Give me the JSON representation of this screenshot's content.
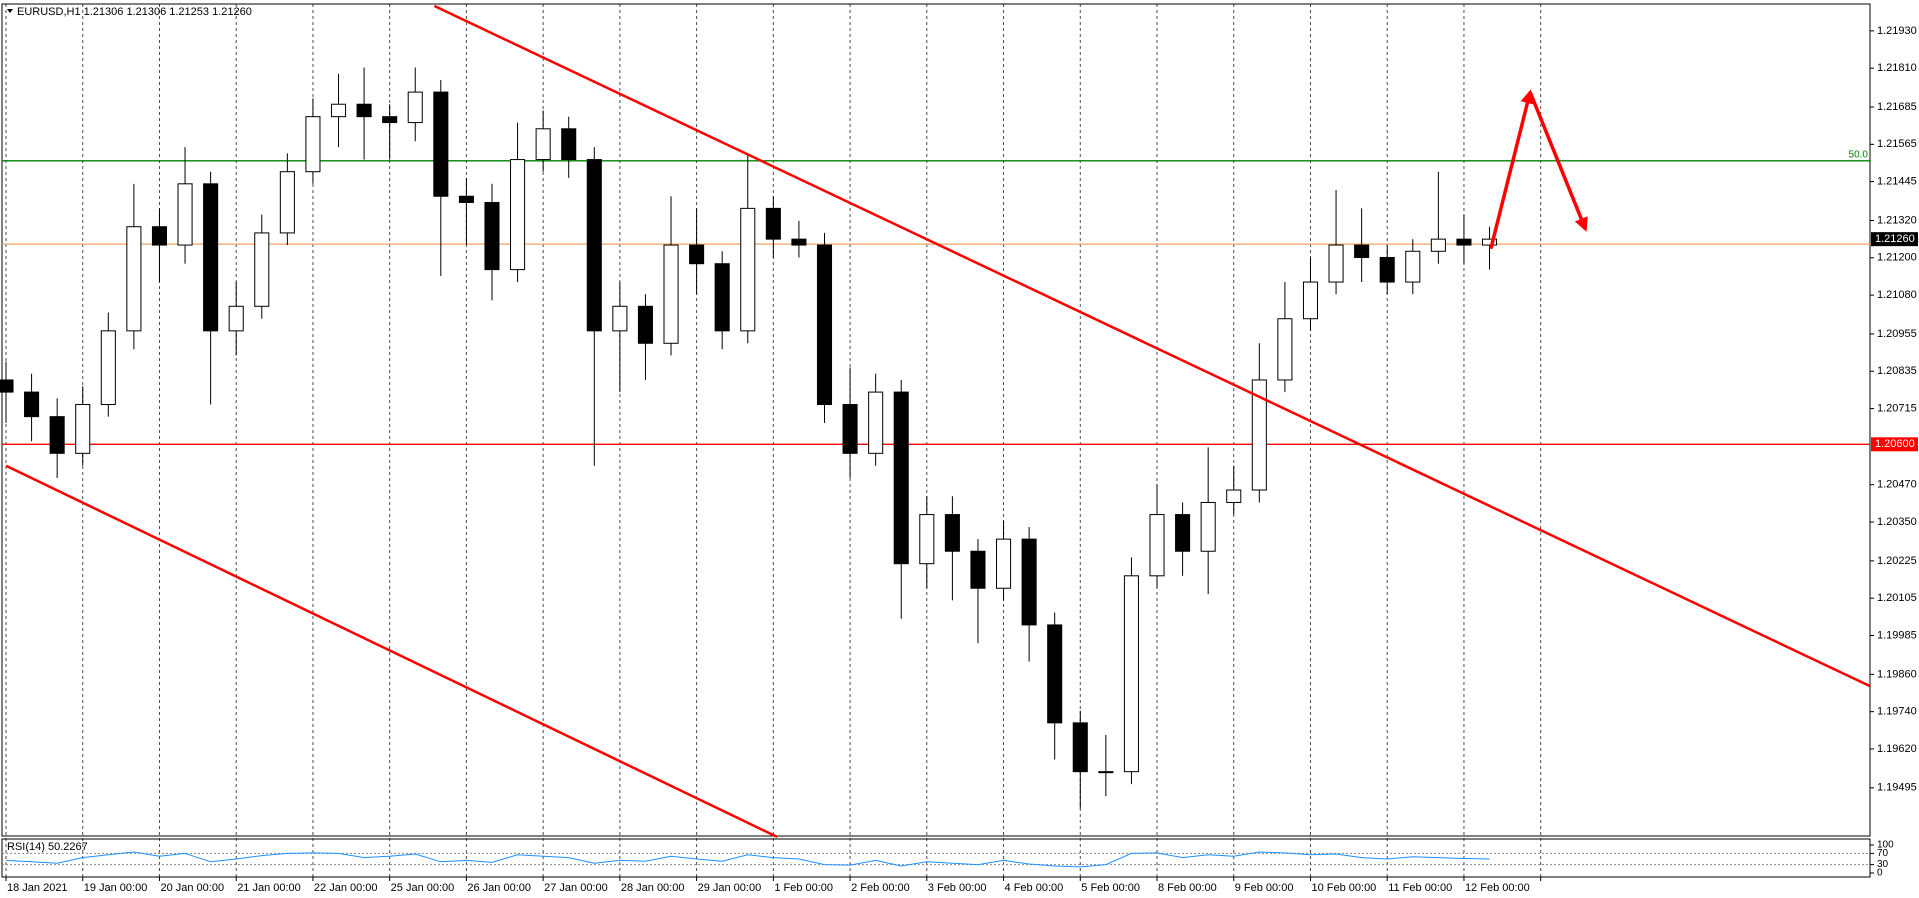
{
  "chart_data": {
    "type": "candlestick",
    "title": "EURUSD,H1  1.21306 1.21306 1.21253 1.21260",
    "x": [
      0,
      8,
      16,
      24,
      32,
      40,
      48,
      56,
      64,
      72,
      80,
      88,
      96,
      104,
      112,
      120,
      128,
      136,
      144,
      152,
      160,
      168,
      176,
      184,
      192,
      200,
      208,
      216,
      224,
      232,
      240,
      248,
      256,
      264,
      272,
      280,
      288,
      296,
      304,
      312,
      320,
      328,
      336,
      344,
      352,
      360,
      368,
      376,
      384,
      392,
      400,
      408,
      416,
      424,
      432,
      440,
      448,
      456,
      464
    ],
    "open": [
      1.20807,
      1.20768,
      1.20689,
      1.20571,
      1.20728,
      1.20965,
      1.213,
      1.21241,
      1.21438,
      1.20965,
      1.21044,
      1.2128,
      1.21477,
      1.21654,
      1.21694,
      1.21654,
      1.21635,
      1.21733,
      1.21398,
      1.21378,
      1.21162,
      1.21516,
      1.21615,
      1.21516,
      1.20965,
      1.21044,
      1.20925,
      1.21241,
      1.21181,
      1.20965,
      1.21359,
      1.2126,
      1.21241,
      1.20728,
      1.20571,
      1.20768,
      1.20216,
      1.20374,
      1.20256,
      1.20137,
      1.20295,
      1.20019,
      1.19704,
      1.19547,
      1.19547,
      1.20177,
      1.20374,
      1.20256,
      1.20413,
      1.20453,
      1.20807,
      1.21004,
      1.21122,
      1.21241,
      1.21201,
      1.21122,
      1.21221,
      1.2126,
      1.21241
    ],
    "high": [
      1.20866,
      1.20827,
      1.20748,
      1.20787,
      1.21024,
      1.21438,
      1.21359,
      1.21556,
      1.21477,
      1.21122,
      1.21339,
      1.21536,
      1.21713,
      1.21792,
      1.21812,
      1.21694,
      1.21812,
      1.21772,
      1.21457,
      1.21438,
      1.21635,
      1.21674,
      1.21654,
      1.21556,
      1.21122,
      1.21083,
      1.21398,
      1.21359,
      1.21221,
      1.21536,
      1.21398,
      1.21319,
      1.2128,
      1.20847,
      1.20827,
      1.20807,
      1.20433,
      1.20433,
      1.20295,
      1.20354,
      1.20334,
      1.20059,
      1.19743,
      1.19665,
      1.20236,
      1.20472,
      1.20413,
      1.2059,
      1.20531,
      1.20925,
      1.21122,
      1.21201,
      1.21418,
      1.21359,
      1.21241,
      1.2126,
      1.21477,
      1.21339,
      1.213
    ],
    "low": [
      1.20669,
      1.2061,
      1.20492,
      1.20531,
      1.20689,
      1.20906,
      1.21122,
      1.21181,
      1.20728,
      1.20886,
      1.21004,
      1.21241,
      1.21438,
      1.21556,
      1.21516,
      1.21516,
      1.21575,
      1.21142,
      1.21241,
      1.21063,
      1.21122,
      1.21477,
      1.21457,
      1.20531,
      1.20768,
      1.20807,
      1.20886,
      1.21083,
      1.20906,
      1.20925,
      1.21201,
      1.21201,
      1.20669,
      1.20492,
      1.20531,
      1.20039,
      1.20137,
      1.20098,
      1.1996,
      1.20098,
      1.19901,
      1.19586,
      1.19429,
      1.19468,
      1.19507,
      1.20137,
      1.20177,
      1.20118,
      1.20374,
      1.20413,
      1.20768,
      1.20965,
      1.21083,
      1.21122,
      1.21083,
      1.21083,
      1.21181,
      1.21181,
      1.21162
    ],
    "close": [
      1.20768,
      1.20689,
      1.20571,
      1.20728,
      1.20965,
      1.213,
      1.21241,
      1.21438,
      1.20965,
      1.21044,
      1.2128,
      1.21477,
      1.21654,
      1.21694,
      1.21654,
      1.21635,
      1.21733,
      1.21398,
      1.21378,
      1.21162,
      1.21516,
      1.21615,
      1.21516,
      1.20965,
      1.21044,
      1.20925,
      1.21241,
      1.21181,
      1.20965,
      1.21359,
      1.2126,
      1.21241,
      1.20728,
      1.20571,
      1.20768,
      1.20216,
      1.20374,
      1.20256,
      1.20137,
      1.20295,
      1.20019,
      1.19704,
      1.19547,
      1.19547,
      1.20177,
      1.20374,
      1.20256,
      1.20413,
      1.20453,
      1.20807,
      1.21004,
      1.21122,
      1.21241,
      1.21201,
      1.21122,
      1.21221,
      1.2126,
      1.21241,
      1.2126
    ],
    "candle_colors": {
      "up": "#ffffff",
      "down": "#000000",
      "outline": "#000000"
    },
    "xlim": [
      0,
      583
    ],
    "ylim": [
      1.1934,
      1.2201
    ],
    "xticks": [
      {
        "value": 0,
        "label": "18 Jan 2021"
      },
      {
        "value": 24,
        "label": "19 Jan 00:00"
      },
      {
        "value": 48,
        "label": "20 Jan 00:00"
      },
      {
        "value": 72,
        "label": "21 Jan 00:00"
      },
      {
        "value": 96,
        "label": "22 Jan 00:00"
      },
      {
        "value": 120,
        "label": "25 Jan 00:00"
      },
      {
        "value": 144,
        "label": "26 Jan 00:00"
      },
      {
        "value": 168,
        "label": "27 Jan 00:00"
      },
      {
        "value": 192,
        "label": "28 Jan 00:00"
      },
      {
        "value": 216,
        "label": "29 Jan 00:00"
      },
      {
        "value": 240,
        "label": "1 Feb 00:00"
      },
      {
        "value": 264,
        "label": "2 Feb 00:00"
      },
      {
        "value": 288,
        "label": "3 Feb 00:00"
      },
      {
        "value": 312,
        "label": "4 Feb 00:00"
      },
      {
        "value": 336,
        "label": "5 Feb 00:00"
      },
      {
        "value": 360,
        "label": "8 Feb 00:00"
      },
      {
        "value": 384,
        "label": "9 Feb 00:00"
      },
      {
        "value": 408,
        "label": "10 Feb 00:00"
      },
      {
        "value": 432,
        "label": "11 Feb 00:00"
      },
      {
        "value": 456,
        "label": "12 Feb 00:00"
      },
      {
        "value": 480,
        "label": null
      }
    ],
    "yticks": [
      {
        "value": 1.2193,
        "label": "1.21930"
      },
      {
        "value": 1.2181,
        "label": "1.21810"
      },
      {
        "value": 1.21685,
        "label": "1.21685"
      },
      {
        "value": 1.21565,
        "label": "1.21565"
      },
      {
        "value": 1.21445,
        "label": "1.21445"
      },
      {
        "value": 1.2132,
        "label": "1.21320"
      },
      {
        "value": 1.212,
        "label": "1.21200"
      },
      {
        "value": 1.2108,
        "label": "1.21080"
      },
      {
        "value": 1.20955,
        "label": "1.20955"
      },
      {
        "value": 1.20835,
        "label": "1.20835"
      },
      {
        "value": 1.20715,
        "label": "1.20715"
      },
      {
        "value": 1.2047,
        "label": "1.20470"
      },
      {
        "value": 1.2035,
        "label": "1.20350"
      },
      {
        "value": 1.20225,
        "label": "1.20225"
      },
      {
        "value": 1.20105,
        "label": "1.20105"
      },
      {
        "value": 1.19985,
        "label": "1.19985"
      },
      {
        "value": 1.1986,
        "label": "1.19860"
      },
      {
        "value": 1.1974,
        "label": "1.19740"
      },
      {
        "value": 1.1962,
        "label": "1.19620"
      },
      {
        "value": 1.19495,
        "label": "1.19495"
      }
    ],
    "grid": "x",
    "hlines": [
      {
        "value": 1.21512,
        "color": "#008000",
        "label": "50.0"
      },
      {
        "value": 1.21244,
        "color": "#f4a460"
      },
      {
        "value": 1.206,
        "color": "#ff0000",
        "label": "1.20600"
      }
    ],
    "bid": {
      "value": 1.2126,
      "label": "1.21260",
      "color": "#000000"
    },
    "trendlines": [
      {
        "x": [
          134,
          583
        ],
        "y": [
          1.2201,
          1.19822
        ],
        "color": "#ff0000"
      },
      {
        "x": [
          0,
          241.2
        ],
        "y": [
          1.20531,
          1.19337
        ],
        "color": "#ff0000"
      }
    ],
    "arrows": [
      {
        "x": [
          464.4,
          476.7,
          494
        ],
        "y": [
          1.21229,
          1.21733,
          1.21292
        ],
        "color": "#ff0000"
      }
    ],
    "indicator": {
      "type": "line",
      "title": "RSI(14) 50.2267",
      "values": [
        45,
        40,
        35,
        55,
        65,
        75,
        60,
        70,
        40,
        50,
        62,
        70,
        72,
        70,
        55,
        60,
        68,
        40,
        45,
        38,
        65,
        60,
        55,
        35,
        45,
        42,
        60,
        50,
        42,
        65,
        55,
        50,
        30,
        28,
        45,
        25,
        40,
        35,
        30,
        45,
        32,
        25,
        22,
        30,
        70,
        72,
        55,
        65,
        60,
        75,
        72,
        65,
        68,
        55,
        50,
        58,
        55,
        52,
        50
      ],
      "color": "#1e90ff",
      "ylim": [
        0,
        100
      ],
      "yticks": [
        100,
        70,
        30,
        0
      ]
    }
  }
}
